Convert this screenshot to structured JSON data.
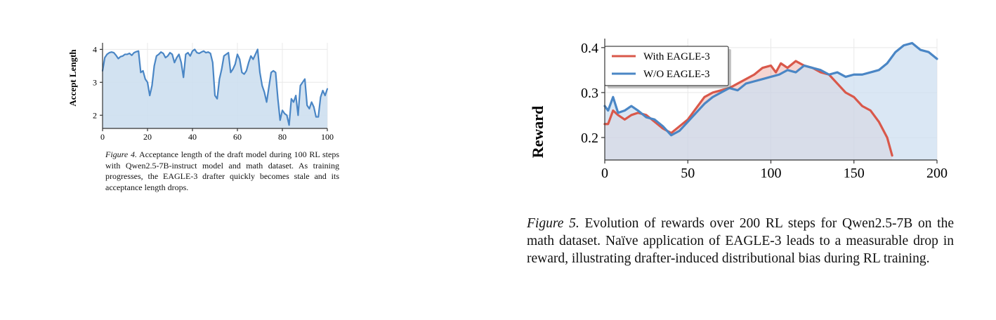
{
  "colors": {
    "blue": "#4a86c5",
    "red": "#d9584a",
    "blue_fill": "#cddff0",
    "red_fill": "#c9b6cc",
    "grid": "#e8e8e8"
  },
  "chart_data": [
    {
      "id": "figure-4",
      "type": "area",
      "title": "",
      "xlabel": "",
      "ylabel": "Accept Length",
      "xlim": [
        0,
        100
      ],
      "ylim": [
        1.6,
        4.2
      ],
      "xticks": [
        0,
        20,
        40,
        60,
        80,
        100
      ],
      "yticks": [
        2,
        3,
        4
      ],
      "grid": true,
      "series": [
        {
          "name": "Accept Length",
          "color": "#4a86c5",
          "x": [
            0,
            1,
            2,
            3,
            4,
            5,
            6,
            7,
            8,
            9,
            10,
            11,
            12,
            13,
            14,
            15,
            16,
            17,
            18,
            19,
            20,
            21,
            22,
            23,
            24,
            25,
            26,
            27,
            28,
            29,
            30,
            31,
            32,
            33,
            34,
            35,
            36,
            37,
            38,
            39,
            40,
            41,
            42,
            43,
            44,
            45,
            46,
            47,
            48,
            49,
            50,
            51,
            52,
            53,
            54,
            55,
            56,
            57,
            58,
            59,
            60,
            61,
            62,
            63,
            64,
            65,
            66,
            67,
            68,
            69,
            70,
            71,
            72,
            73,
            74,
            75,
            76,
            77,
            78,
            79,
            80,
            81,
            82,
            83,
            84,
            85,
            86,
            87,
            88,
            89,
            90,
            91,
            92,
            93,
            94,
            95,
            96,
            97,
            98,
            99,
            100
          ],
          "values": [
            3.35,
            3.75,
            3.85,
            3.9,
            3.92,
            3.9,
            3.82,
            3.72,
            3.78,
            3.8,
            3.85,
            3.85,
            3.88,
            3.82,
            3.9,
            3.93,
            3.95,
            3.3,
            3.35,
            3.1,
            3.0,
            2.6,
            2.9,
            3.5,
            3.8,
            3.85,
            3.92,
            3.88,
            3.75,
            3.8,
            3.9,
            3.85,
            3.6,
            3.75,
            3.85,
            3.6,
            3.15,
            3.85,
            3.9,
            3.8,
            3.95,
            4.0,
            3.9,
            3.88,
            3.92,
            3.95,
            3.9,
            3.92,
            3.88,
            3.6,
            2.6,
            2.5,
            3.1,
            3.4,
            3.8,
            3.85,
            3.9,
            3.3,
            3.4,
            3.55,
            3.85,
            3.7,
            3.3,
            3.25,
            3.35,
            3.6,
            3.8,
            3.7,
            3.85,
            4.0,
            3.3,
            2.9,
            2.7,
            2.4,
            2.85,
            3.3,
            3.35,
            3.3,
            2.5,
            1.85,
            2.15,
            2.05,
            2.0,
            1.7,
            2.5,
            2.4,
            2.6,
            2.0,
            2.9,
            3.0,
            3.1,
            2.3,
            2.2,
            2.4,
            2.25,
            1.95,
            1.95,
            2.55,
            2.75,
            2.6,
            2.8
          ]
        }
      ]
    },
    {
      "id": "figure-5",
      "type": "area",
      "title": "",
      "xlabel": "",
      "ylabel": "Reward",
      "xlim": [
        0,
        200
      ],
      "ylim": [
        0.15,
        0.42
      ],
      "xticks": [
        0,
        50,
        100,
        150,
        200
      ],
      "yticks": [
        0.2,
        0.3,
        0.4
      ],
      "grid": true,
      "legend_position": "top-left",
      "series": [
        {
          "name": "With EAGLE-3",
          "color": "#d9584a",
          "x": [
            0,
            2,
            5,
            8,
            12,
            16,
            20,
            25,
            30,
            35,
            40,
            45,
            50,
            55,
            60,
            65,
            70,
            75,
            80,
            85,
            90,
            95,
            100,
            103,
            106,
            110,
            115,
            120,
            125,
            130,
            135,
            140,
            145,
            150,
            155,
            160,
            165,
            170,
            173
          ],
          "values": [
            0.23,
            0.23,
            0.26,
            0.25,
            0.24,
            0.25,
            0.255,
            0.25,
            0.235,
            0.22,
            0.21,
            0.225,
            0.24,
            0.265,
            0.29,
            0.3,
            0.305,
            0.31,
            0.32,
            0.33,
            0.34,
            0.355,
            0.36,
            0.345,
            0.365,
            0.355,
            0.37,
            0.36,
            0.355,
            0.345,
            0.34,
            0.32,
            0.3,
            0.29,
            0.27,
            0.26,
            0.235,
            0.2,
            0.16
          ]
        },
        {
          "name": "W/O EAGLE-3",
          "color": "#4a86c5",
          "x": [
            0,
            2,
            5,
            8,
            12,
            16,
            20,
            25,
            30,
            35,
            40,
            45,
            50,
            55,
            60,
            65,
            70,
            75,
            80,
            85,
            90,
            95,
            100,
            105,
            110,
            115,
            120,
            125,
            130,
            135,
            140,
            145,
            150,
            155,
            160,
            165,
            170,
            175,
            180,
            185,
            190,
            195,
            200
          ],
          "values": [
            0.27,
            0.26,
            0.29,
            0.255,
            0.26,
            0.27,
            0.26,
            0.245,
            0.24,
            0.225,
            0.205,
            0.215,
            0.235,
            0.255,
            0.275,
            0.29,
            0.3,
            0.31,
            0.305,
            0.32,
            0.325,
            0.33,
            0.335,
            0.34,
            0.35,
            0.345,
            0.36,
            0.355,
            0.35,
            0.34,
            0.345,
            0.335,
            0.34,
            0.34,
            0.345,
            0.35,
            0.365,
            0.39,
            0.405,
            0.41,
            0.395,
            0.39,
            0.375
          ]
        }
      ]
    }
  ],
  "captions": {
    "fig4": {
      "label": "Figure 4.",
      "text": "Acceptance length of the draft model during 100 RL steps with Qwen2.5-7B-instruct model and math dataset. As training progresses, the EAGLE-3 drafter quickly becomes stale and its acceptance length drops."
    },
    "fig5": {
      "label": "Figure 5.",
      "text": "Evolution of rewards over 200 RL steps for Qwen2.5-7B on the math dataset. Naïve application of EAGLE-3 leads to a measurable drop in reward, illustrating drafter-induced distributional bias during RL training."
    }
  }
}
